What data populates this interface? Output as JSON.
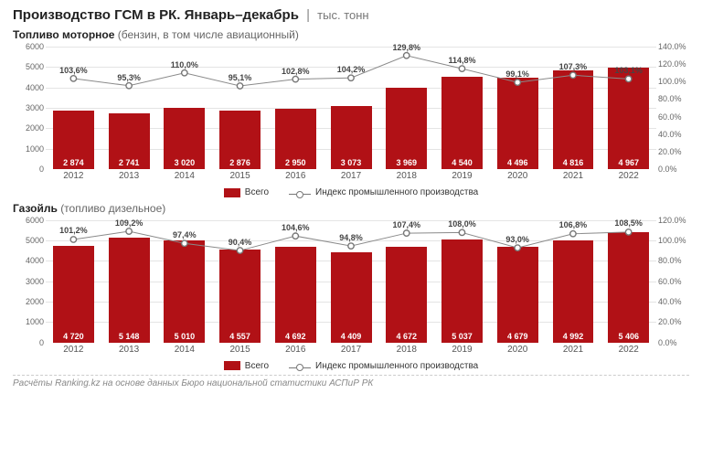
{
  "title_main": "Производство ГСМ в РК. Январь–декабрь",
  "title_unit": "тыс. тонн",
  "legend_bar": "Всего",
  "legend_line": "Индекс промышленного производства",
  "footer": "Расчёты Ranking.kz на основе данных Бюро национальной статистики АСПиР РК",
  "colors": {
    "bar": "#b11116",
    "line": "#8a8a8a",
    "marker_stroke": "#777777",
    "marker_fill": "#ffffff",
    "grid": "#e4e4e4"
  },
  "charts": [
    {
      "subtitle_bold": "Топливо моторное",
      "subtitle_paren": "(бензин, в том числе авиационный)",
      "years": [
        "2012",
        "2013",
        "2014",
        "2015",
        "2016",
        "2017",
        "2018",
        "2019",
        "2020",
        "2021",
        "2022"
      ],
      "bars": [
        2874,
        2741,
        3020,
        2876,
        2950,
        3073,
        3969,
        4540,
        4496,
        4816,
        4967
      ],
      "bar_labels": [
        "2 874",
        "2 741",
        "3 020",
        "2 876",
        "2 950",
        "3 073",
        "3 969",
        "4 540",
        "4 496",
        "4 816",
        "4 967"
      ],
      "line_pct": [
        103.6,
        95.3,
        110.0,
        95.1,
        102.8,
        104.2,
        129.8,
        114.8,
        99.1,
        107.3,
        103.1
      ],
      "pct_labels": [
        "103,6%",
        "95,3%",
        "110,0%",
        "95,1%",
        "102,8%",
        "104,2%",
        "129,8%",
        "114,8%",
        "99,1%",
        "107,3%",
        "103,1%"
      ],
      "y_left": {
        "min": 0,
        "max": 6000,
        "step": 1000
      },
      "y_right": {
        "min": 0,
        "max": 140,
        "step": 20
      }
    },
    {
      "subtitle_bold": "Газойль",
      "subtitle_paren": "(топливо дизельное)",
      "years": [
        "2012",
        "2013",
        "2014",
        "2015",
        "2016",
        "2017",
        "2018",
        "2019",
        "2020",
        "2021",
        "2022"
      ],
      "bars": [
        4720,
        5148,
        5010,
        4557,
        4692,
        4409,
        4672,
        5037,
        4679,
        4992,
        5406
      ],
      "bar_labels": [
        "4 720",
        "5 148",
        "5 010",
        "4 557",
        "4 692",
        "4 409",
        "4 672",
        "5 037",
        "4 679",
        "4 992",
        "5 406"
      ],
      "line_pct": [
        101.2,
        109.2,
        97.4,
        90.4,
        104.6,
        94.8,
        107.4,
        108.0,
        93.0,
        106.8,
        108.5
      ],
      "pct_labels": [
        "101,2%",
        "109,2%",
        "97,4%",
        "90,4%",
        "104,6%",
        "94,8%",
        "107,4%",
        "108,0%",
        "93,0%",
        "106,8%",
        "108,5%"
      ],
      "y_left": {
        "min": 0,
        "max": 6000,
        "step": 1000
      },
      "y_right": {
        "min": 0,
        "max": 120,
        "step": 20
      }
    }
  ]
}
